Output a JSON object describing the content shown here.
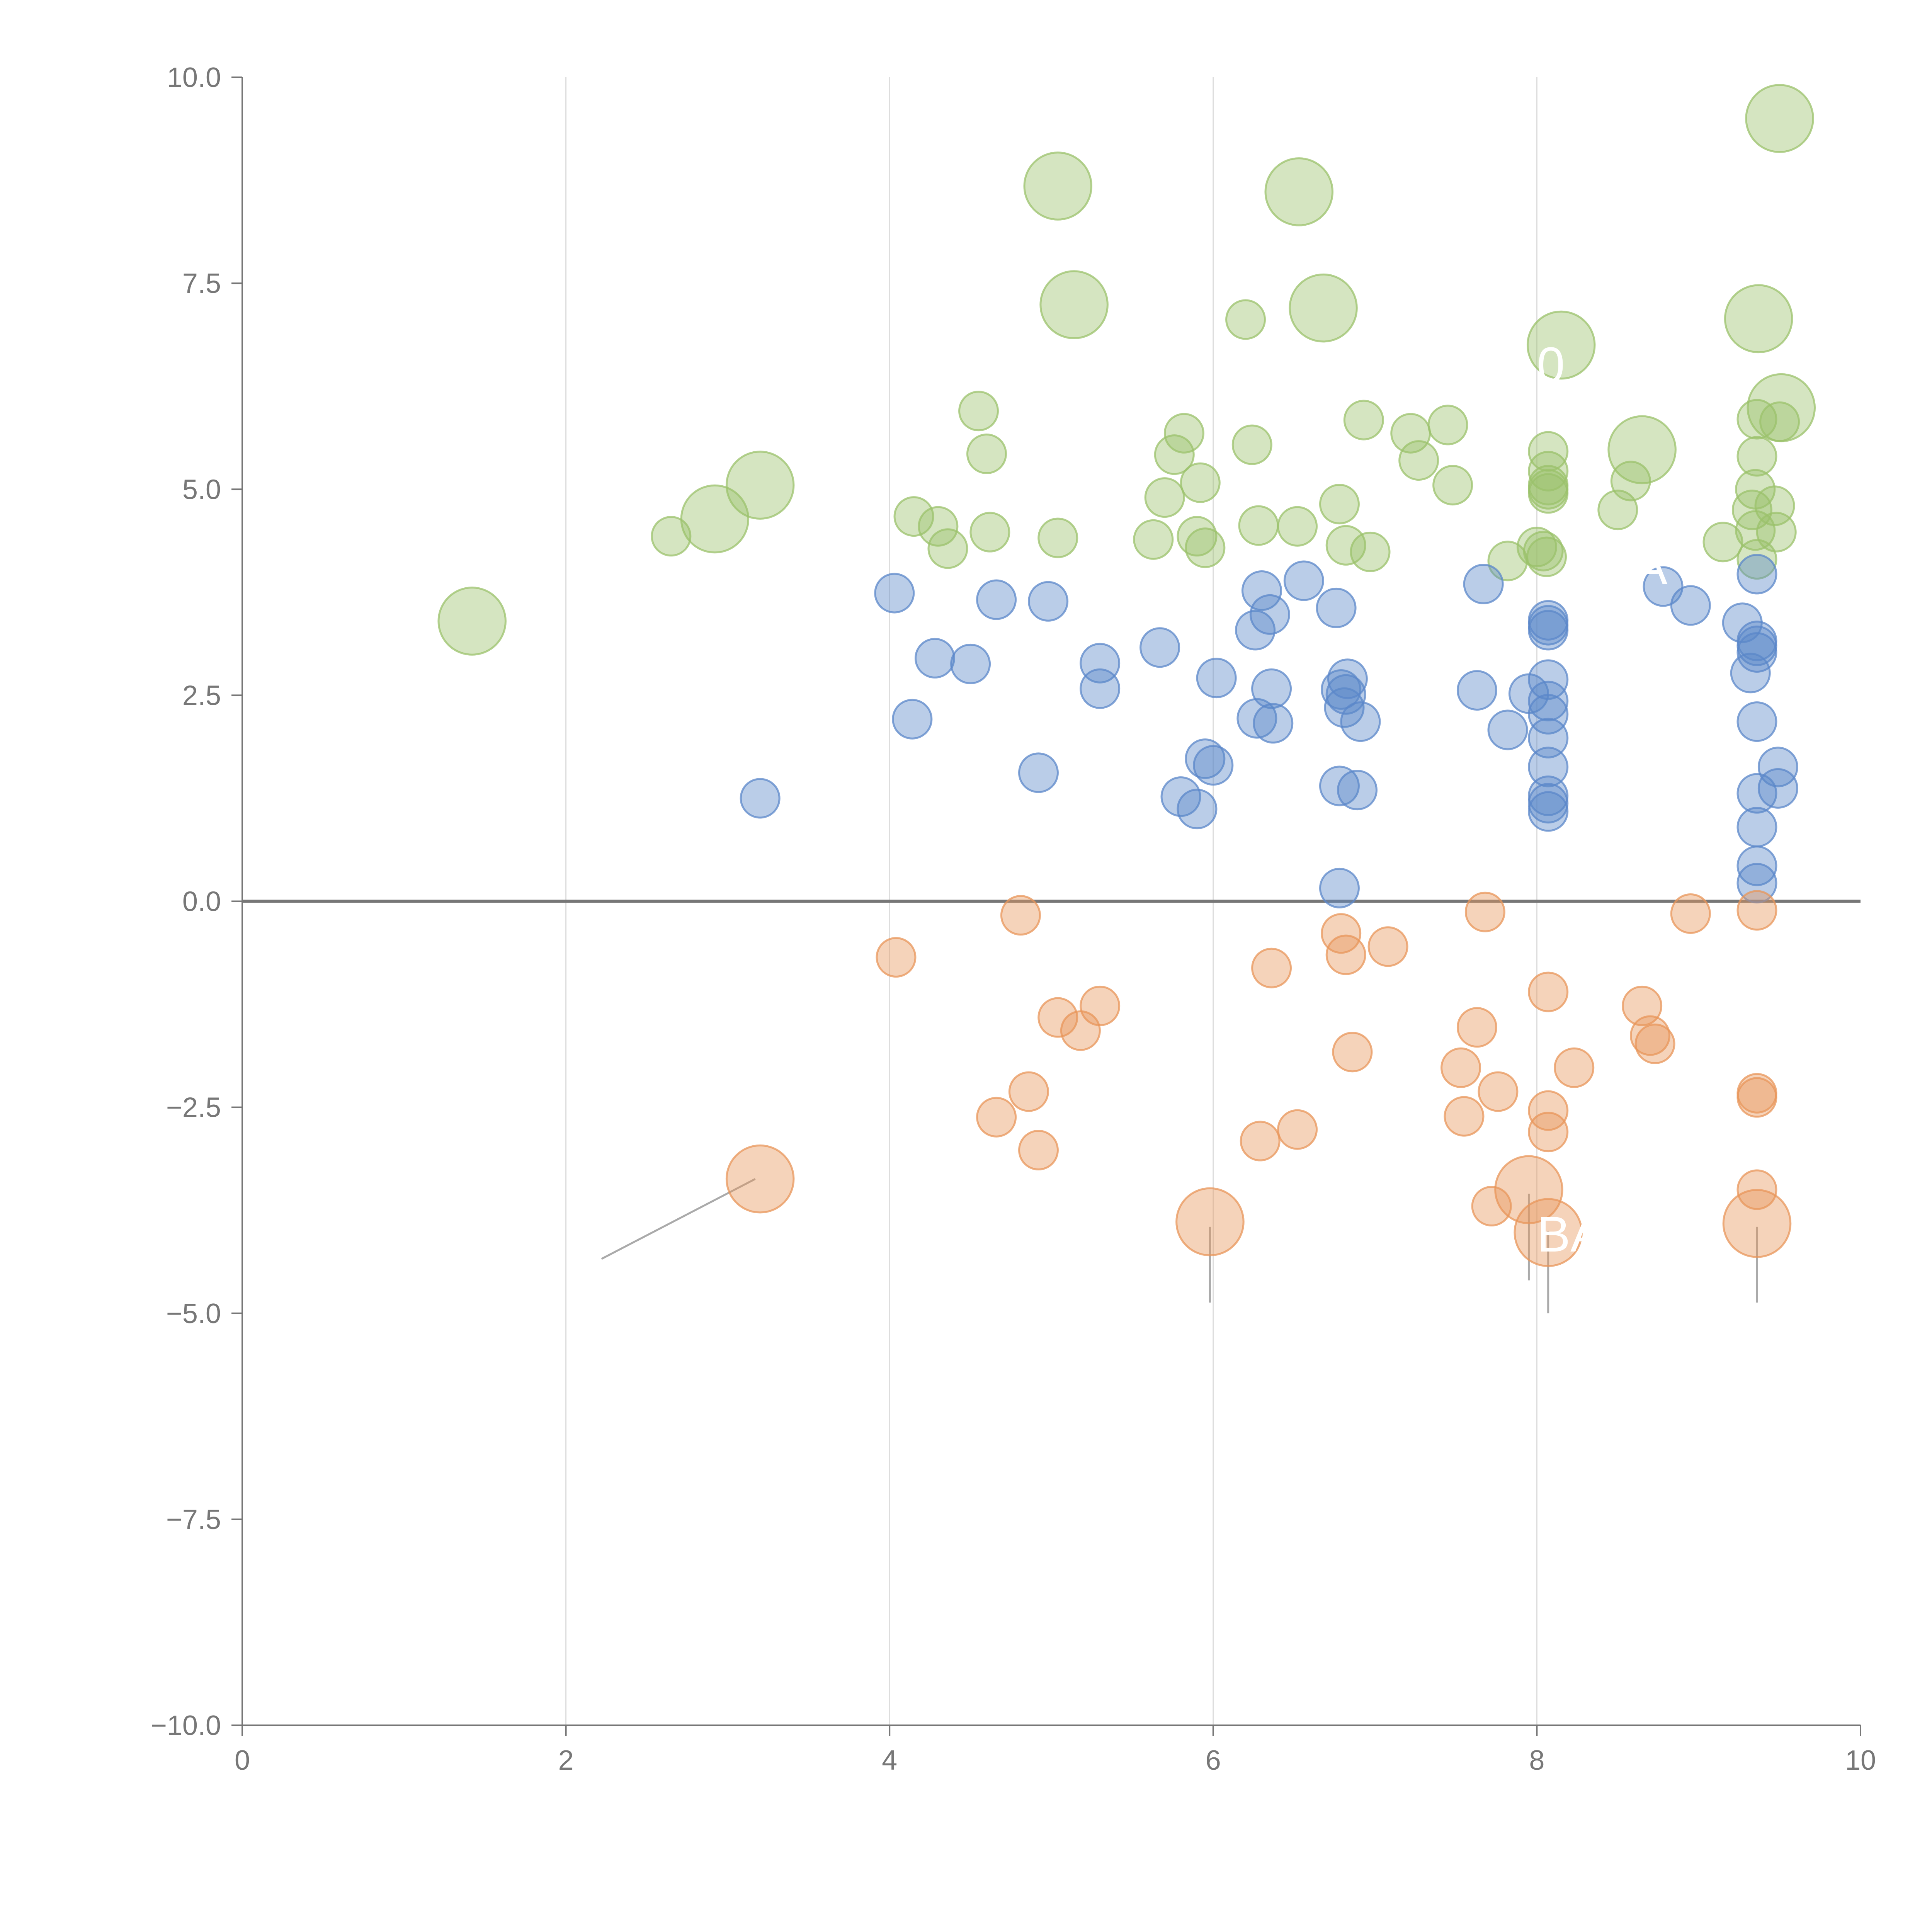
{
  "chart_data": {
    "type": "scatter",
    "title": "",
    "xlabel": "",
    "ylabel": "",
    "xlim": [
      0,
      10
    ],
    "ylim": [
      -10,
      10
    ],
    "xticks": [
      0,
      2,
      4,
      6,
      8,
      10
    ],
    "xtick_labels": [
      "0",
      "2",
      "4",
      "6",
      "8",
      "10"
    ],
    "yticks": [
      10,
      7.5,
      5,
      2.5,
      0,
      -2.5,
      -5,
      -7.5,
      -10
    ],
    "ytick_labels": [
      "10.0",
      "7.5",
      "5.0",
      "2.5",
      "0.0",
      "−2.5",
      "−5.0",
      "−7.5",
      "−10.0"
    ],
    "vertical_gridlines_at": [
      2,
      4,
      6,
      8
    ],
    "zero_line": 0,
    "colors": {
      "green": "#9bc26b",
      "blue": "#5b87c9",
      "orange": "#e8955a",
      "axis": "#777777",
      "grid": "#dddddd",
      "zero": "#777777",
      "leader": "#aaaaaa"
    },
    "series": [
      {
        "name": "green",
        "color": "#9bc26b",
        "points": [
          [
            1.42,
            3.4,
            2.2
          ],
          [
            2.65,
            4.43,
            1
          ],
          [
            2.92,
            4.64,
            2.2
          ],
          [
            3.2,
            5.05,
            2.2
          ],
          [
            4.15,
            4.67,
            1
          ],
          [
            4.3,
            4.55,
            1
          ],
          [
            4.36,
            4.28,
            1
          ],
          [
            4.55,
            5.95,
            1
          ],
          [
            4.6,
            5.43,
            1
          ],
          [
            4.62,
            4.48,
            1
          ],
          [
            5.04,
            4.41,
            1
          ],
          [
            5.04,
            8.68,
            2.2
          ],
          [
            5.14,
            7.24,
            2.2
          ],
          [
            5.63,
            4.39,
            1
          ],
          [
            5.7,
            4.9,
            1
          ],
          [
            5.76,
            5.42,
            1
          ],
          [
            5.82,
            5.68,
            1
          ],
          [
            5.9,
            4.43,
            1
          ],
          [
            5.92,
            5.08,
            1
          ],
          [
            5.95,
            4.29,
            1
          ],
          [
            6.2,
            7.06,
            1
          ],
          [
            6.24,
            5.54,
            1
          ],
          [
            6.28,
            4.56,
            1
          ],
          [
            6.52,
            4.55,
            1
          ],
          [
            6.53,
            8.61,
            2.2
          ],
          [
            6.68,
            7.2,
            2.2
          ],
          [
            6.78,
            4.82,
            1
          ],
          [
            6.82,
            4.32,
            1
          ],
          [
            6.93,
            5.84,
            1
          ],
          [
            6.97,
            4.24,
            1
          ],
          [
            7.22,
            5.68,
            1
          ],
          [
            7.27,
            5.35,
            1
          ],
          [
            7.45,
            5.78,
            1
          ],
          [
            7.48,
            5.05,
            1
          ],
          [
            7.82,
            4.13,
            1
          ],
          [
            8.0,
            4.3,
            1
          ],
          [
            8.04,
            4.25,
            1
          ],
          [
            8.06,
            4.18,
            1
          ],
          [
            8.07,
            4.95,
            1
          ],
          [
            8.07,
            5.05,
            1
          ],
          [
            8.07,
            5.22,
            1
          ],
          [
            8.07,
            5.46,
            1
          ],
          [
            8.07,
            5.0,
            1
          ],
          [
            8.15,
            6.75,
            2.2
          ],
          [
            8.5,
            4.75,
            1
          ],
          [
            8.58,
            5.1,
            1
          ],
          [
            8.65,
            5.48,
            2.2
          ],
          [
            9.15,
            4.36,
            1
          ],
          [
            9.33,
            4.75,
            1
          ],
          [
            9.35,
            5.0,
            1
          ],
          [
            9.35,
            4.5,
            1
          ],
          [
            9.36,
            4.15,
            1
          ],
          [
            9.36,
            5.4,
            1
          ],
          [
            9.36,
            5.85,
            1
          ],
          [
            9.37,
            7.07,
            2.2
          ],
          [
            9.47,
            4.8,
            1
          ],
          [
            9.48,
            4.48,
            1
          ],
          [
            9.5,
            9.5,
            2.2
          ],
          [
            9.51,
            5.99,
            2.2
          ],
          [
            9.5,
            5.82,
            1
          ]
        ]
      },
      {
        "name": "blue",
        "color": "#5b87c9",
        "points": [
          [
            3.2,
            1.25,
            1
          ],
          [
            4.03,
            3.74,
            1
          ],
          [
            4.14,
            2.21,
            1
          ],
          [
            4.28,
            2.95,
            1
          ],
          [
            4.5,
            2.88,
            1
          ],
          [
            4.66,
            3.66,
            1
          ],
          [
            4.92,
            1.56,
            1
          ],
          [
            4.98,
            3.64,
            1
          ],
          [
            5.3,
            2.89,
            1
          ],
          [
            5.3,
            2.58,
            1
          ],
          [
            5.67,
            3.08,
            1
          ],
          [
            5.8,
            1.27,
            1
          ],
          [
            5.9,
            1.12,
            1
          ],
          [
            5.95,
            1.73,
            1
          ],
          [
            6.0,
            1.65,
            1
          ],
          [
            6.02,
            2.71,
            1
          ],
          [
            6.26,
            3.29,
            1
          ],
          [
            6.27,
            2.22,
            1
          ],
          [
            6.3,
            3.77,
            1
          ],
          [
            6.35,
            3.48,
            1
          ],
          [
            6.36,
            2.58,
            1
          ],
          [
            6.37,
            2.16,
            1
          ],
          [
            6.56,
            3.89,
            1
          ],
          [
            6.76,
            3.56,
            1
          ],
          [
            6.78,
            1.4,
            1
          ],
          [
            6.78,
            0.16,
            1
          ],
          [
            6.79,
            2.57,
            1
          ],
          [
            6.81,
            2.35,
            1
          ],
          [
            6.82,
            2.51,
            1
          ],
          [
            6.83,
            2.7,
            1
          ],
          [
            6.89,
            1.35,
            1
          ],
          [
            6.91,
            2.18,
            1
          ],
          [
            7.63,
            2.56,
            1
          ],
          [
            7.67,
            3.85,
            1
          ],
          [
            7.82,
            2.08,
            1
          ],
          [
            7.95,
            2.52,
            1
          ],
          [
            8.07,
            3.35,
            1
          ],
          [
            8.07,
            3.29,
            1
          ],
          [
            8.07,
            3.41,
            1
          ],
          [
            8.07,
            2.69,
            1
          ],
          [
            8.07,
            2.43,
            1
          ],
          [
            8.07,
            2.27,
            1
          ],
          [
            8.07,
            1.98,
            1
          ],
          [
            8.07,
            1.63,
            1
          ],
          [
            8.07,
            1.28,
            1
          ],
          [
            8.07,
            1.19,
            1
          ],
          [
            8.07,
            1.09,
            1
          ],
          [
            8.78,
            3.82,
            1
          ],
          [
            8.95,
            3.59,
            1
          ],
          [
            9.27,
            3.38,
            1
          ],
          [
            9.32,
            2.77,
            1
          ],
          [
            9.36,
            3.97,
            1
          ],
          [
            9.36,
            3.16,
            1
          ],
          [
            9.36,
            3.1,
            1
          ],
          [
            9.36,
            3.02,
            1
          ],
          [
            9.36,
            2.18,
            1
          ],
          [
            9.36,
            1.31,
            1
          ],
          [
            9.36,
            0.9,
            1
          ],
          [
            9.36,
            0.43,
            1
          ],
          [
            9.36,
            0.22,
            1
          ],
          [
            9.49,
            1.63,
            1
          ],
          [
            9.49,
            1.37,
            1
          ]
        ]
      },
      {
        "name": "orange",
        "color": "#e8955a",
        "points": [
          [
            3.2,
            -3.37,
            2.2
          ],
          [
            4.04,
            -0.68,
            1
          ],
          [
            4.66,
            -2.62,
            1
          ],
          [
            4.81,
            -0.17,
            1
          ],
          [
            4.86,
            -2.31,
            1
          ],
          [
            4.92,
            -3.02,
            1
          ],
          [
            5.04,
            -1.41,
            1
          ],
          [
            5.18,
            -1.57,
            1
          ],
          [
            5.3,
            -1.27,
            1
          ],
          [
            5.98,
            -3.89,
            2.2
          ],
          [
            6.29,
            -2.91,
            1
          ],
          [
            6.36,
            -0.81,
            1
          ],
          [
            6.52,
            -2.77,
            1
          ],
          [
            6.79,
            -0.39,
            1
          ],
          [
            6.82,
            -0.65,
            1
          ],
          [
            6.86,
            -1.83,
            1
          ],
          [
            7.08,
            -0.55,
            1
          ],
          [
            7.53,
            -2.02,
            1
          ],
          [
            7.55,
            -2.61,
            1
          ],
          [
            7.63,
            -1.53,
            1
          ],
          [
            7.68,
            -0.13,
            1
          ],
          [
            7.72,
            -3.7,
            1
          ],
          [
            7.76,
            -2.31,
            1
          ],
          [
            7.95,
            -3.5,
            2.2
          ],
          [
            8.07,
            -1.1,
            1
          ],
          [
            8.07,
            -2.54,
            1
          ],
          [
            8.07,
            -2.8,
            1
          ],
          [
            8.07,
            -4.02,
            2.2
          ],
          [
            8.23,
            -2.02,
            1
          ],
          [
            8.65,
            -1.27,
            1
          ],
          [
            8.7,
            -1.63,
            1
          ],
          [
            8.73,
            -1.73,
            1
          ],
          [
            8.95,
            -0.15,
            1
          ],
          [
            9.36,
            -0.11,
            1
          ],
          [
            9.36,
            -2.33,
            1
          ],
          [
            9.36,
            -2.38,
            1
          ],
          [
            9.36,
            -3.5,
            1
          ],
          [
            9.36,
            -3.91,
            2.2
          ]
        ]
      }
    ],
    "annotations": [
      {
        "text": "BA",
        "x": 8.0,
        "y": -4.25
      },
      {
        "text": "0",
        "x": 8.0,
        "y": 6.3
      },
      {
        "text": "A",
        "x": 8.6,
        "y": 3.85
      }
    ],
    "leader_lines": [
      [
        2.22,
        -4.34,
        3.17,
        -3.37
      ],
      [
        5.98,
        -3.95,
        5.98,
        -4.87
      ],
      [
        7.95,
        -3.55,
        7.95,
        -4.6
      ],
      [
        8.07,
        -4.0,
        8.07,
        -5.0
      ],
      [
        9.36,
        -3.95,
        9.36,
        -4.87
      ]
    ]
  }
}
